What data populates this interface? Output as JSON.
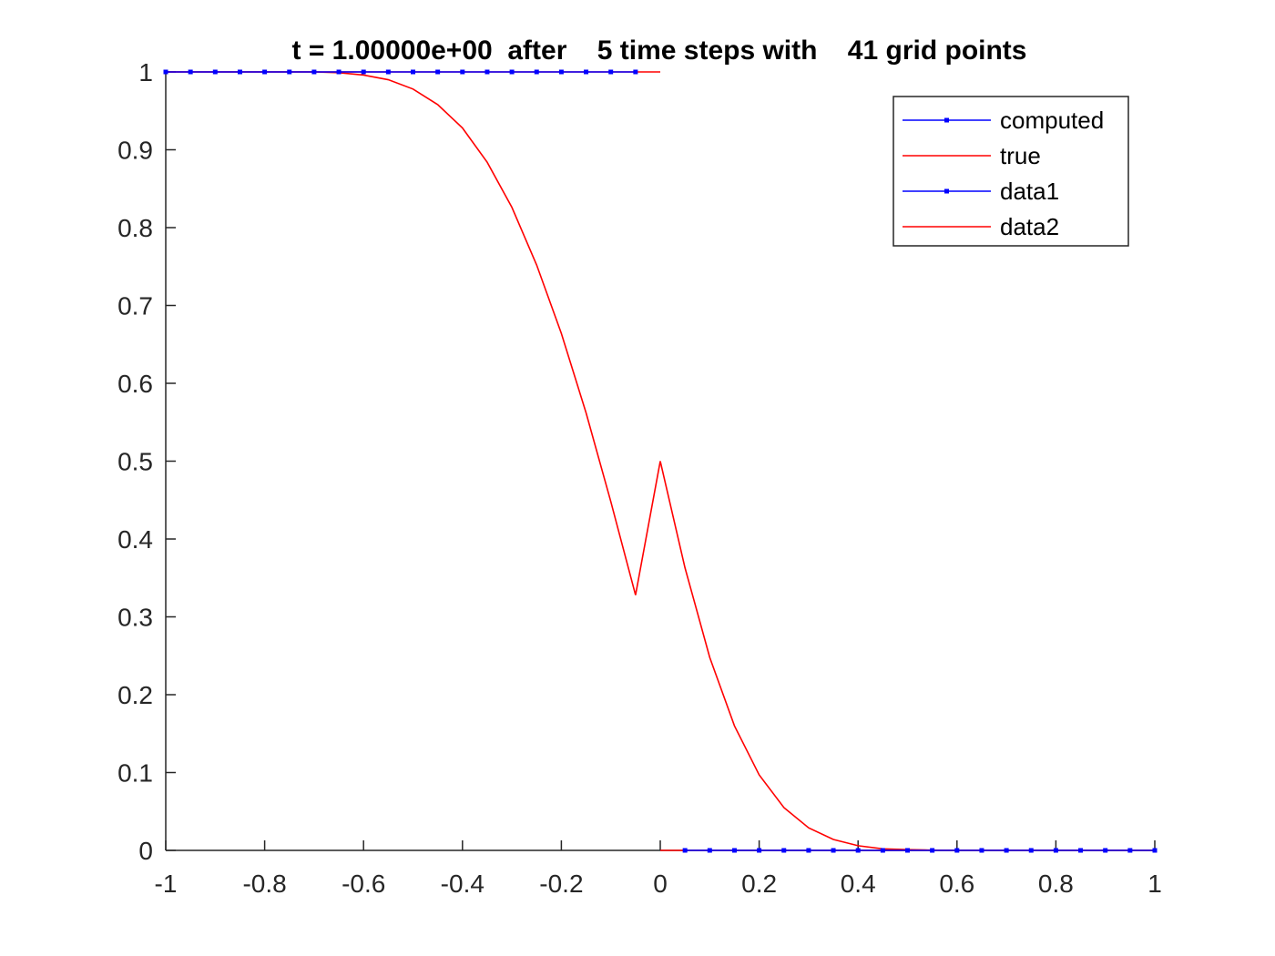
{
  "chart_data": {
    "type": "line",
    "title": "t = 1.00000e+00  after    5 time steps with    41 grid points",
    "xlabel": "",
    "ylabel": "",
    "xlim": [
      -1,
      1
    ],
    "ylim": [
      0,
      1
    ],
    "xticks": [
      -1,
      -0.8,
      -0.6,
      -0.4,
      -0.2,
      0,
      0.2,
      0.4,
      0.6,
      0.8,
      1
    ],
    "xtick_labels": [
      "-1",
      "-0.8",
      "-0.6",
      "-0.4",
      "-0.2",
      "0",
      "0.2",
      "0.4",
      "0.6",
      "0.8",
      "1"
    ],
    "yticks": [
      0,
      0.1,
      0.2,
      0.3,
      0.4,
      0.5,
      0.6,
      0.7,
      0.8,
      0.9,
      1
    ],
    "ytick_labels": [
      "0",
      "0.1",
      "0.2",
      "0.3",
      "0.4",
      "0.5",
      "0.6",
      "0.7",
      "0.8",
      "0.9",
      "1"
    ],
    "grid": false,
    "legend_position": "top-right",
    "series": [
      {
        "name": "computed",
        "color": "#0000ff",
        "marker": "square",
        "x": [
          -1,
          -0.95,
          -0.9,
          -0.85,
          -0.8,
          -0.75,
          -0.7,
          -0.65,
          -0.6,
          -0.55,
          -0.5,
          -0.45,
          -0.4,
          -0.35,
          -0.3,
          -0.25,
          -0.2,
          -0.15,
          -0.1,
          -0.05
        ],
        "y": [
          1,
          1,
          1,
          1,
          1,
          1,
          1,
          1,
          1,
          1,
          1,
          1,
          1,
          1,
          1,
          1,
          1,
          1,
          1,
          1
        ]
      },
      {
        "name": "true",
        "color": "#ff0000",
        "marker": "none",
        "x": [
          -1,
          0
        ],
        "y": [
          1,
          1
        ]
      },
      {
        "name": "data1",
        "color": "#0000ff",
        "marker": "square",
        "x": [
          0.05,
          0.1,
          0.15,
          0.2,
          0.25,
          0.3,
          0.35,
          0.4,
          0.45,
          0.5,
          0.55,
          0.6,
          0.65,
          0.7,
          0.75,
          0.8,
          0.85,
          0.9,
          0.95,
          1
        ],
        "y": [
          0,
          0,
          0,
          0,
          0,
          0,
          0,
          0,
          0,
          0,
          0,
          0,
          0,
          0,
          0,
          0,
          0,
          0,
          0,
          0
        ]
      },
      {
        "name": "data2",
        "color": "#ff0000",
        "marker": "none",
        "x": [
          0,
          1
        ],
        "y": [
          0,
          0
        ]
      },
      {
        "name": "",
        "color": "#ff0000",
        "marker": "none",
        "x": [
          -1,
          -0.7,
          -0.65,
          -0.6,
          -0.55,
          -0.5,
          -0.45,
          -0.4,
          -0.35,
          -0.3,
          -0.25,
          -0.2,
          -0.15,
          -0.1,
          -0.05,
          0,
          0.05,
          0.1,
          0.15,
          0.2,
          0.25,
          0.3,
          0.35,
          0.4,
          0.45,
          0.5,
          0.55,
          0.6,
          0.65,
          1
        ],
        "y": [
          1,
          1,
          0.999,
          0.996,
          0.99,
          0.978,
          0.958,
          0.928,
          0.884,
          0.826,
          0.752,
          0.664,
          0.562,
          0.448,
          0.328,
          0.5,
          0.363,
          0.248,
          0.16,
          0.097,
          0.055,
          0.029,
          0.014,
          0.006,
          0.002,
          0.001,
          0.0003,
          0,
          0,
          0
        ]
      }
    ]
  }
}
